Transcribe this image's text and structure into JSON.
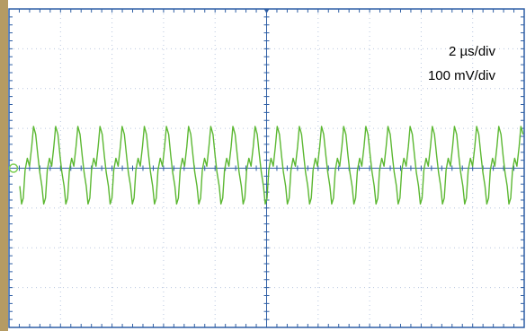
{
  "settings": {
    "time_per_div": "2 µs/div",
    "volts_per_div": "100 mV/div"
  },
  "colors": {
    "frame_left": "#b59b63",
    "border": "#2f5fa5",
    "grid": "#b9c7df",
    "trace": "#5cb832",
    "marker": "#7ecf55",
    "trigger": "#2f5fa5"
  },
  "chart_data": {
    "type": "line",
    "title": "",
    "xlabel": "",
    "ylabel": "",
    "x_divisions": 10,
    "y_divisions": 8,
    "grid": true,
    "x_range_us": [
      0,
      20
    ],
    "y_range_div": [
      -4,
      4
    ],
    "series": [
      {
        "period_us": 0.86,
        "cycles": 23,
        "waveform_div": {
          "phase": [
            0.0,
            0.08,
            0.16,
            0.24,
            0.34,
            0.44,
            0.54,
            0.62,
            0.72,
            0.82,
            0.9,
            1.0
          ],
          "level": [
            -0.45,
            -0.9,
            -0.75,
            -0.05,
            0.25,
            0.05,
            0.55,
            1.05,
            0.85,
            0.3,
            -0.1,
            -0.45
          ]
        }
      }
    ]
  }
}
